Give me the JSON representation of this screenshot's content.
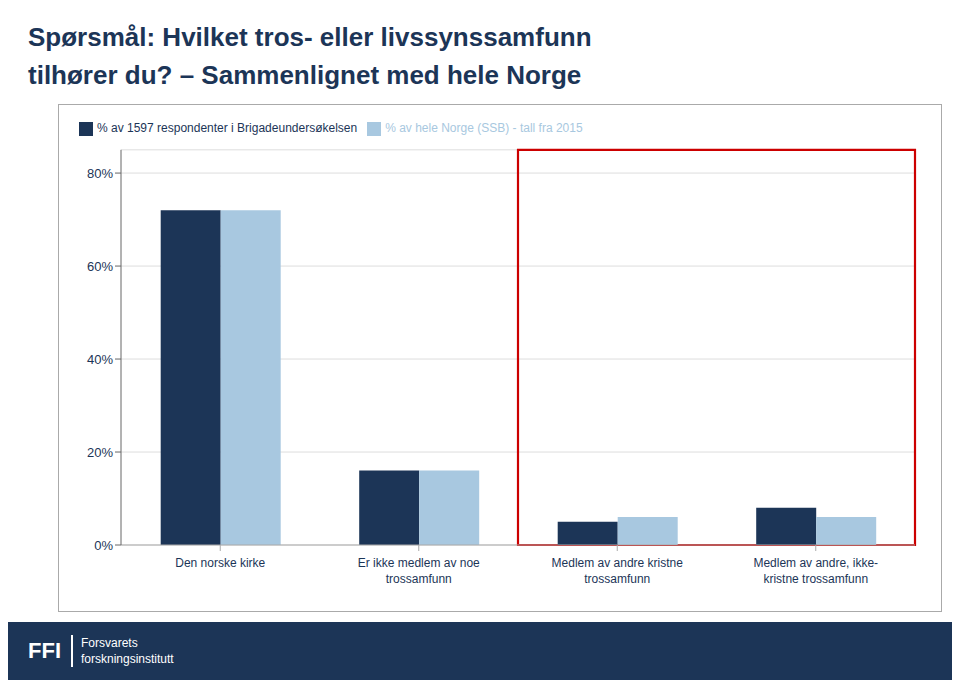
{
  "chart_data": {
    "type": "bar",
    "title": "Spørsmål: Hvilket tros- eller livssynssamfunn\ntilhører du? – Sammenlignet med hele Norge",
    "categories": [
      "Den norske kirke",
      "Er ikke medlem av noe\ntrossamfunn",
      "Medlem av andre kristne\ntrossamfunn",
      "Medlem av andre, ikke-\nkristne trossamfunn"
    ],
    "series": [
      {
        "name": "% av 1597 respondenter i Brigadeundersøkelsen",
        "color": "#1c3557",
        "values": [
          72,
          16,
          5,
          8
        ]
      },
      {
        "name": "% av hele Norge (SSB) - tall fra 2015",
        "color": "#a8c8e0",
        "values": [
          72,
          16,
          6,
          6
        ]
      }
    ],
    "ylim": [
      0,
      85
    ],
    "yticks": [
      {
        "value": 0,
        "label": "0%"
      },
      {
        "value": 20,
        "label": "20%"
      },
      {
        "value": 40,
        "label": "40%"
      },
      {
        "value": 60,
        "label": "60%"
      },
      {
        "value": 80,
        "label": "80%"
      }
    ],
    "grid": true,
    "legend": "upper left",
    "annotations": [
      "FFI",
      "Forsvarets",
      "forskningsinstitutt"
    ]
  }
}
